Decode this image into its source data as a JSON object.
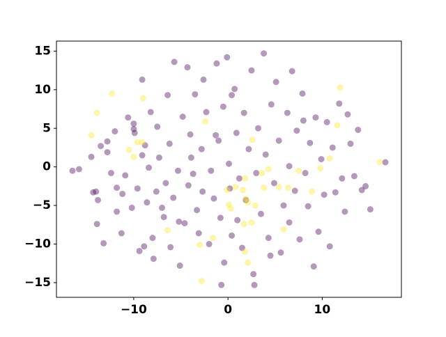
{
  "chart_data": {
    "type": "scatter",
    "xlim": [
      -18.2,
      18.4
    ],
    "ylim": [
      -16.9,
      16.3
    ],
    "xticks": [
      {
        "value": -10,
        "label": "−10"
      },
      0,
      10
    ],
    "yticks": [
      {
        "value": -15,
        "label": "−15"
      },
      {
        "value": -10,
        "label": "−10"
      },
      {
        "value": -5,
        "label": "−5"
      },
      0,
      5,
      10,
      15
    ],
    "alpha": 0.4,
    "series": [
      {
        "color": "#440154",
        "x": [
          -16.5,
          -15.8,
          -14.5,
          -14.3,
          -14,
          -13.8,
          -13.9,
          -13.5,
          -13.2,
          -12.8,
          -12.8,
          -12.4,
          -12,
          -11.8,
          -11.8,
          -11.3,
          -11.2,
          -10.9,
          -10.6,
          -10,
          -10,
          -9.9,
          -9.6,
          -9.4,
          -9.1,
          -9.1,
          -8.9,
          -8.6,
          -8.4,
          -8.2,
          -8,
          -7.9,
          -7.6,
          -7.5,
          -7.3,
          -7,
          -6.8,
          -6.6,
          -6.4,
          -6.2,
          -6.1,
          -5.8,
          -5.7,
          -5.3,
          -5.1,
          -4.8,
          -4.6,
          -4.3,
          -4.2,
          -4,
          -3.7,
          -3.5,
          -3.3,
          -3.1,
          -2.8,
          -2.7,
          -2.6,
          -2.3,
          -2,
          -1.8,
          -1.5,
          -1.2,
          -1,
          -0.8,
          -0.5,
          -0.4,
          -0.1,
          0.1,
          0.2,
          0.4,
          0.7,
          0.9,
          1.2,
          1.5,
          1.7,
          1.9,
          2.2,
          2.5,
          2.7,
          3.0,
          3.2,
          3.5,
          3.8,
          4.0,
          4.3,
          4.6,
          4.9,
          5.1,
          5.4,
          5.6,
          5.9,
          6.3,
          6.5,
          6.8,
          7.1,
          7.3,
          7.6,
          7.9,
          8.2,
          8.5,
          8.7,
          9.1,
          9.3,
          9.6,
          9.9,
          10.2,
          10.5,
          10.8,
          11.1,
          11.4,
          11.8,
          12.1,
          12.4,
          12.7,
          13,
          13.4,
          13.8,
          14.2,
          14.6,
          15.1,
          16.7,
          -0.7,
          2.8,
          4.5,
          6.5,
          -5.2,
          -3.9,
          1.0,
          -1.3,
          0.4,
          8.0,
          -8.8,
          -10.2
        ],
        "values": [
          -0.5,
          -0.3,
          1.3,
          -3.3,
          -3.2,
          -4.3,
          -7.4,
          2.7,
          -9.9,
          1.9,
          3.3,
          -0.8,
          4.6,
          -2.7,
          -5.8,
          -8.6,
          -3.5,
          -1.1,
          6.4,
          5.6,
          4.9,
          4.4,
          -2.8,
          -10.9,
          11.3,
          1.5,
          -10.3,
          -4.6,
          -0.1,
          7.1,
          -9.2,
          -11.9,
          -3.2,
          5.2,
          1.2,
          -5.3,
          -6.5,
          -2.1,
          9.3,
          3.0,
          -10.4,
          -4.0,
          13.6,
          -0.5,
          -12.8,
          6.5,
          -7.3,
          12.9,
          -2.4,
          4.2,
          -0.9,
          9.4,
          -5.6,
          -8.6,
          2.3,
          -3.2,
          11.3,
          7.1,
          -10.0,
          -0.5,
          -4.1,
          13.4,
          3.4,
          -6.6,
          7.8,
          -12.4,
          14.2,
          0.4,
          -2.8,
          -8.9,
          10.1,
          4.4,
          -1.5,
          -10.5,
          7.0,
          -4.3,
          2.3,
          12.5,
          -13.9,
          -0.8,
          5.0,
          -6.1,
          14.7,
          1.6,
          -9.2,
          8.1,
          -2.1,
          11.0,
          3.4,
          -11.1,
          -5.0,
          7.0,
          0.1,
          12.4,
          -3.1,
          4.7,
          -9.4,
          9.5,
          -0.8,
          -5.1,
          3.1,
          -12.9,
          6.4,
          -8.4,
          1.0,
          -3.6,
          5.8,
          -10.3,
          2.5,
          -3.3,
          8.2,
          -1.5,
          -5.8,
          6.8,
          3.0,
          -1.2,
          4.8,
          -3.0,
          -2.5,
          -5.5,
          0.6,
          -15.3,
          -15.3,
          -11.5,
          -7.2,
          -7.1,
          1.2,
          -6.9,
          4.1,
          9.3,
          6.0,
          2.8,
          -5.3
        ]
      },
      {
        "color": "#fde725",
        "x": [
          -12.3,
          -13.9,
          -14.5,
          -10.5,
          -10,
          -9.6,
          -9.1,
          -2.4,
          -6.4,
          -3,
          -1.6,
          -2.8,
          -0.1,
          0.1,
          0.3,
          0.8,
          1.6,
          1.8,
          1.9,
          2.1,
          2.6,
          2.9,
          3.6,
          3.8,
          4.3,
          5.4,
          5.9,
          6.4,
          7.5,
          8.9,
          9.8,
          10.8,
          11.9,
          11.6,
          16.1,
          1.7,
          1.8,
          2.1,
          2.5,
          -9
        ],
        "values": [
          9.5,
          7.0,
          4.1,
          2.2,
          1.3,
          3.2,
          3.2,
          5.9,
          -8.2,
          -10.1,
          -9.2,
          -14.8,
          -3.0,
          -4.9,
          -5.4,
          -2.6,
          -3.0,
          -1.5,
          -4.1,
          -4.6,
          3.5,
          -5.0,
          -0.8,
          -2.7,
          -0.3,
          -2.6,
          -8.1,
          -2.7,
          -0.5,
          -3.2,
          -0.2,
          1.1,
          10.3,
          5.4,
          0.6,
          -7.4,
          -11.0,
          -12.4,
          -7.2,
          8.9
        ]
      }
    ]
  }
}
